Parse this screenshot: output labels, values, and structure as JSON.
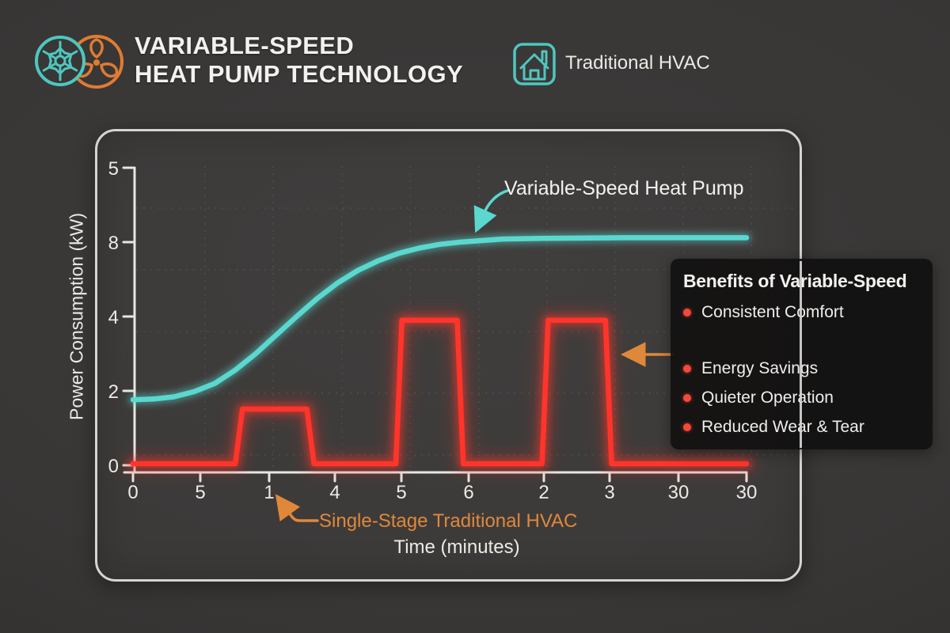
{
  "header": {
    "title_line1": "VARIABLE-SPEED",
    "title_line2": "HEAT PUMP TECHNOLOGY",
    "legend_label": "Traditional HVAC"
  },
  "chart": {
    "ylabel": "Power Consumption (kW)",
    "xlabel": "Time (minutes)",
    "y_ticks": [
      "5",
      "8",
      "4",
      "2",
      "0"
    ],
    "x_ticks": [
      "0",
      "5",
      "1",
      "4",
      "5",
      "6",
      "2",
      "3",
      "30",
      "30"
    ],
    "series1_label": "Variable-Speed Heat Pump",
    "series2_label": "Single-Stage Traditional HVAC"
  },
  "benefits": {
    "title": "Benefits of Variable-Speed",
    "items": [
      "Consistent Comfort",
      "Energy Savings",
      "Quieter Operation",
      "Reduced Wear & Tear"
    ]
  },
  "colors": {
    "teal": "#5ad8cf",
    "red": "#ff352b",
    "orange": "#e0883a",
    "axis": "#e8e6e2",
    "icon_teal": "#4ec7bf",
    "icon_orange": "#e07b33"
  },
  "chart_data": {
    "type": "line",
    "title": "Variable-Speed Heat Pump vs Single-Stage Traditional HVAC power consumption over time",
    "xlabel": "Time (minutes)",
    "ylabel": "Power Consumption (kW)",
    "x_tick_labels": [
      "0",
      "5",
      "1",
      "4",
      "5",
      "6",
      "2",
      "3",
      "30",
      "30"
    ],
    "y_tick_labels_top_to_bottom": [
      "5",
      "8",
      "4",
      "2",
      "0"
    ],
    "x_range": [
      0,
      30
    ],
    "y_unit_note": "y values in gridline units above the bottom axis; one unit = one y-tick spacing",
    "grid": "dashed",
    "legend_position": "inline-annotations",
    "series": [
      {
        "name": "Variable-Speed Heat Pump",
        "color": "#5ad8cf",
        "points": [
          [
            0,
            0.88
          ],
          [
            1,
            0.89
          ],
          [
            2,
            0.92
          ],
          [
            3,
            0.99
          ],
          [
            4,
            1.1
          ],
          [
            5,
            1.28
          ],
          [
            6,
            1.5
          ],
          [
            7,
            1.75
          ],
          [
            8,
            2.0
          ],
          [
            9,
            2.24
          ],
          [
            10,
            2.45
          ],
          [
            11,
            2.62
          ],
          [
            12,
            2.75
          ],
          [
            13,
            2.85
          ],
          [
            14,
            2.92
          ],
          [
            15,
            2.97
          ],
          [
            16,
            3.0
          ],
          [
            18,
            3.04
          ],
          [
            20,
            3.05
          ],
          [
            24,
            3.06
          ],
          [
            30,
            3.06
          ]
        ]
      },
      {
        "name": "Single-Stage Traditional HVAC",
        "color": "#ff352b",
        "points": [
          [
            0,
            0.02
          ],
          [
            5.0,
            0.02
          ],
          [
            5.35,
            0.755
          ],
          [
            8.5,
            0.755
          ],
          [
            8.85,
            0.02
          ],
          [
            12.85,
            0.02
          ],
          [
            13.15,
            1.95
          ],
          [
            15.85,
            1.95
          ],
          [
            16.15,
            0.02
          ],
          [
            20.0,
            0.02
          ],
          [
            20.3,
            1.95
          ],
          [
            23.1,
            1.95
          ],
          [
            23.4,
            0.02
          ],
          [
            30,
            0.02
          ]
        ]
      }
    ],
    "annotations": [
      "Variable-Speed Heat Pump",
      "Single-Stage Traditional HVAC"
    ]
  }
}
